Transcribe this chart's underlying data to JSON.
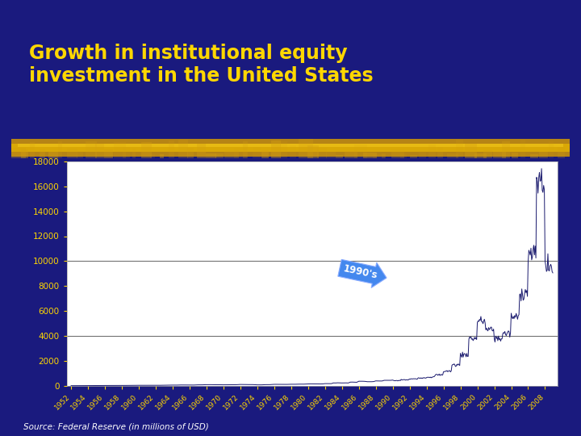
{
  "title": "Growth in institutional equity\ninvestment in the United States",
  "source_text": "Source: Federal Reserve (in millions of USD)",
  "bg_color": "#1a1a7e",
  "plot_bg_color": "#ffffff",
  "title_color": "#ffd700",
  "line_color": "#1a1a6e",
  "tick_color": "#ffd700",
  "annotation_text": "1990's",
  "ylim": [
    0,
    18000
  ],
  "yticks": [
    0,
    2000,
    4000,
    6000,
    8000,
    10000,
    12000,
    14000,
    16000,
    18000
  ],
  "hlines": [
    4000,
    10000
  ],
  "xlim_left": 1951.5,
  "xlim_right": 2009.5
}
